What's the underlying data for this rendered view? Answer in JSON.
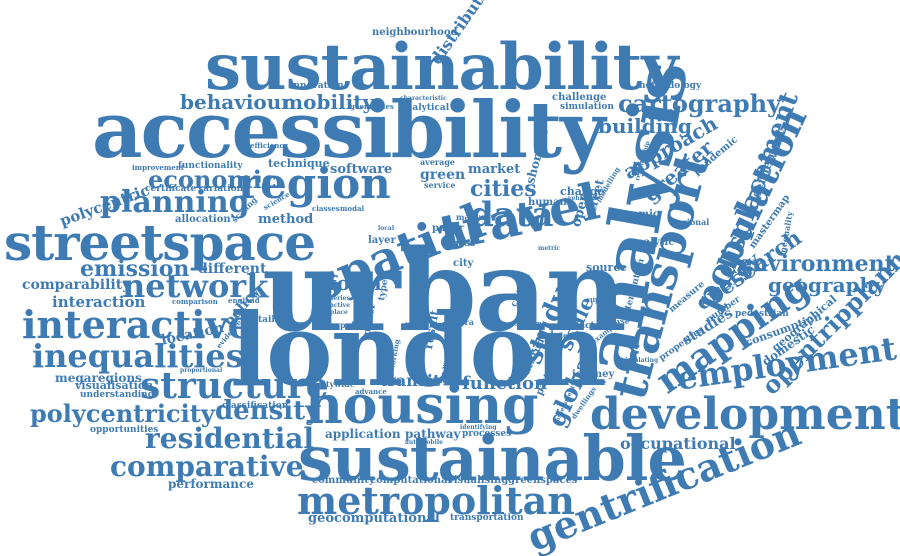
{
  "color": "#3f7bb3",
  "words": [
    {
      "id": "urban",
      "text": "urban"
    },
    {
      "id": "london",
      "text": "london"
    },
    {
      "id": "accessibility",
      "text": "accessibility"
    },
    {
      "id": "sustainability",
      "text": "sustainability"
    },
    {
      "id": "analysis",
      "text": "analysis"
    },
    {
      "id": "transport",
      "text": "transport"
    },
    {
      "id": "sustainable",
      "text": "sustainable"
    },
    {
      "id": "housing",
      "text": "housing"
    },
    {
      "id": "streetspace",
      "text": "streetspace"
    },
    {
      "id": "spatial",
      "text": "spatial"
    },
    {
      "id": "travel",
      "text": "travel"
    },
    {
      "id": "development",
      "text": "development"
    },
    {
      "id": "gentrification",
      "text": "gentrification"
    },
    {
      "id": "metropolitan",
      "text": "metropolitan"
    },
    {
      "id": "population",
      "text": "population"
    },
    {
      "id": "region",
      "text": "region"
    },
    {
      "id": "mapping",
      "text": "mapping"
    },
    {
      "id": "structure",
      "text": "structure"
    },
    {
      "id": "interactive",
      "text": "interactive"
    },
    {
      "id": "inequalities",
      "text": "inequalities"
    },
    {
      "id": "network",
      "text": "network"
    },
    {
      "id": "employment",
      "text": "employment"
    },
    {
      "id": "planning",
      "text": "planning"
    },
    {
      "id": "economic",
      "text": "economic"
    },
    {
      "id": "comparative",
      "text": "comparative"
    },
    {
      "id": "residential",
      "text": "residential"
    },
    {
      "id": "density",
      "text": "density"
    },
    {
      "id": "polycentricity",
      "text": "polycentricity"
    },
    {
      "id": "data",
      "text": "data"
    },
    {
      "id": "cartography",
      "text": "cartography"
    },
    {
      "id": "displacement",
      "text": "displacement"
    },
    {
      "id": "global",
      "text": "global"
    },
    {
      "id": "study",
      "text": "study"
    },
    {
      "id": "opentripplanner",
      "text": "opentripplanner"
    },
    {
      "id": "environment",
      "text": "environment"
    },
    {
      "id": "emission",
      "text": "emission"
    },
    {
      "id": "geography",
      "text": "geography"
    },
    {
      "id": "behaviour",
      "text": "behaviour"
    },
    {
      "id": "mobility",
      "text": "mobility"
    },
    {
      "id": "building",
      "text": "building"
    },
    {
      "id": "cities",
      "text": "cities"
    },
    {
      "id": "research",
      "text": "research"
    },
    {
      "id": "energy",
      "text": "energy"
    },
    {
      "id": "approach",
      "text": "approach"
    },
    {
      "id": "greater",
      "text": "greater"
    },
    {
      "id": "distribution",
      "text": "distribution"
    },
    {
      "id": "neighbourhood",
      "text": "neighbourhood"
    },
    {
      "id": "polycentric",
      "text": "polycentric"
    },
    {
      "id": "comparability",
      "text": "comparability"
    },
    {
      "id": "interaction",
      "text": "interaction"
    },
    {
      "id": "different",
      "text": "different"
    },
    {
      "id": "form",
      "text": "form"
    },
    {
      "id": "location",
      "text": "location"
    },
    {
      "id": "policy",
      "text": "policy"
    },
    {
      "id": "megaregions",
      "text": "megaregions"
    },
    {
      "id": "visualisation",
      "text": "visualisation"
    },
    {
      "id": "understanding",
      "text": "understanding"
    },
    {
      "id": "opportunities",
      "text": "opportunities"
    },
    {
      "id": "performance",
      "text": "performance"
    },
    {
      "id": "classification",
      "text": "classification"
    },
    {
      "id": "application",
      "text": "application"
    },
    {
      "id": "pathway",
      "text": "pathway"
    },
    {
      "id": "transit",
      "text": "transit"
    },
    {
      "id": "function",
      "text": "function"
    },
    {
      "id": "occupational",
      "text": "occupational"
    },
    {
      "id": "community",
      "text": "community"
    },
    {
      "id": "computational",
      "text": "computational"
    },
    {
      "id": "visualising",
      "text": "visualising"
    },
    {
      "id": "greenspaces",
      "text": "greenspaces"
    },
    {
      "id": "geocomputational",
      "text": "geocomputational"
    },
    {
      "id": "transportation",
      "text": "transportation"
    },
    {
      "id": "scale",
      "text": "scale"
    },
    {
      "id": "studies",
      "text": "studies"
    },
    {
      "id": "settlement",
      "text": "settlement"
    },
    {
      "id": "innovation",
      "text": "innovation"
    },
    {
      "id": "software",
      "text": "software"
    },
    {
      "id": "technique",
      "text": "technique"
    },
    {
      "id": "green",
      "text": "green"
    },
    {
      "id": "market",
      "text": "market"
    },
    {
      "id": "method",
      "text": "method"
    },
    {
      "id": "methodology",
      "text": "methodology"
    },
    {
      "id": "challenge",
      "text": "challenge"
    },
    {
      "id": "simulation",
      "text": "simulation"
    },
    {
      "id": "change",
      "text": "change"
    },
    {
      "id": "human",
      "text": "human"
    },
    {
      "id": "dynamic",
      "text": "dynamic"
    },
    {
      "id": "pandemic",
      "text": "pandemic"
    },
    {
      "id": "allocation",
      "text": "allocation"
    },
    {
      "id": "certificate",
      "text": "certificate"
    },
    {
      "id": "variation",
      "text": "variation"
    },
    {
      "id": "functionality",
      "text": "functionality"
    },
    {
      "id": "improvement",
      "text": "improvement"
    },
    {
      "id": "efficiency",
      "text": "efficiency"
    },
    {
      "id": "analytical",
      "text": "analytical"
    },
    {
      "id": "source",
      "text": "source"
    },
    {
      "id": "intervention",
      "text": "intervention"
    },
    {
      "id": "journey",
      "text": "journey"
    },
    {
      "id": "domestic",
      "text": "domestic"
    },
    {
      "id": "geographical",
      "text": "geographical"
    },
    {
      "id": "consumption",
      "text": "consumption"
    },
    {
      "id": "mastermap",
      "text": "mastermap"
    },
    {
      "id": "inequality",
      "text": "inequality"
    },
    {
      "id": "number",
      "text": "number"
    },
    {
      "id": "pedestrian",
      "text": "pedestrian"
    },
    {
      "id": "properties",
      "text": "properties"
    },
    {
      "id": "measure",
      "text": "measure"
    },
    {
      "id": "regional",
      "text": "regional"
    },
    {
      "id": "analytic",
      "text": "analytic"
    },
    {
      "id": "service",
      "text": "service"
    },
    {
      "id": "average",
      "text": "average"
    },
    {
      "id": "price",
      "text": "price"
    },
    {
      "id": "detailed",
      "text": "detailed"
    },
    {
      "id": "england",
      "text": "england"
    },
    {
      "id": "comparison",
      "text": "comparison"
    },
    {
      "id": "layer",
      "text": "layer"
    },
    {
      "id": "paper",
      "text": "paper"
    },
    {
      "id": "area",
      "text": "area"
    },
    {
      "id": "city",
      "text": "city"
    },
    {
      "id": "model",
      "text": "model"
    },
    {
      "id": "result",
      "text": "result"
    },
    {
      "id": "citywide",
      "text": "citywide"
    },
    {
      "id": "advance",
      "text": "advance"
    },
    {
      "id": "insight",
      "text": "insight"
    },
    {
      "id": "processes",
      "text": "processes"
    },
    {
      "id": "detection",
      "text": "detection"
    },
    {
      "id": "attitude",
      "text": "attitude"
    },
    {
      "id": "pattern",
      "text": "pattern"
    },
    {
      "id": "response",
      "text": "response"
    },
    {
      "id": "impact",
      "text": "impact"
    },
    {
      "id": "support",
      "text": "support"
    },
    {
      "id": "analyse",
      "text": "analyse"
    },
    {
      "id": "flexible",
      "text": "flexible"
    },
    {
      "id": "system",
      "text": "system"
    },
    {
      "id": "path",
      "text": "path"
    },
    {
      "id": "public",
      "text": "public"
    },
    {
      "id": "evidence",
      "text": "evidence"
    },
    {
      "id": "proportional",
      "text": "proportional"
    },
    {
      "id": "identifying",
      "text": "identifying"
    },
    {
      "id": "automobile",
      "text": "automobile"
    },
    {
      "id": "many",
      "text": "many"
    },
    {
      "id": "classes",
      "text": "classes"
    },
    {
      "id": "modal",
      "text": "modal"
    },
    {
      "id": "science",
      "text": "science"
    },
    {
      "id": "scaling",
      "text": "scaling"
    },
    {
      "id": "geometries",
      "text": "geometries"
    },
    {
      "id": "characteristic",
      "text": "characteristic"
    },
    {
      "id": "shortest",
      "text": "shortest"
    },
    {
      "id": "open",
      "text": "open"
    },
    {
      "id": "street",
      "text": "street"
    },
    {
      "id": "critical",
      "text": "critical"
    },
    {
      "id": "intra",
      "text": "intra"
    },
    {
      "id": "series",
      "text": "series"
    },
    {
      "id": "active",
      "text": "active"
    },
    {
      "id": "place",
      "text": "place"
    },
    {
      "id": "local",
      "text": "local"
    },
    {
      "id": "type",
      "text": "type"
    },
    {
      "id": "working",
      "text": "working"
    },
    {
      "id": "assessment",
      "text": "assessment"
    },
    {
      "id": "dwellings",
      "text": "dwellings"
    },
    {
      "id": "relationship",
      "text": "relationship"
    },
    {
      "id": "vehicular",
      "text": "vehicular"
    },
    {
      "id": "modelling",
      "text": "modelling"
    },
    {
      "id": "example",
      "text": "example"
    },
    {
      "id": "simulating",
      "text": "simulating"
    },
    {
      "id": "metric",
      "text": "metric"
    },
    {
      "id": "world",
      "text": "world"
    },
    {
      "id": "belt",
      "text": "belt"
    }
  ]
}
